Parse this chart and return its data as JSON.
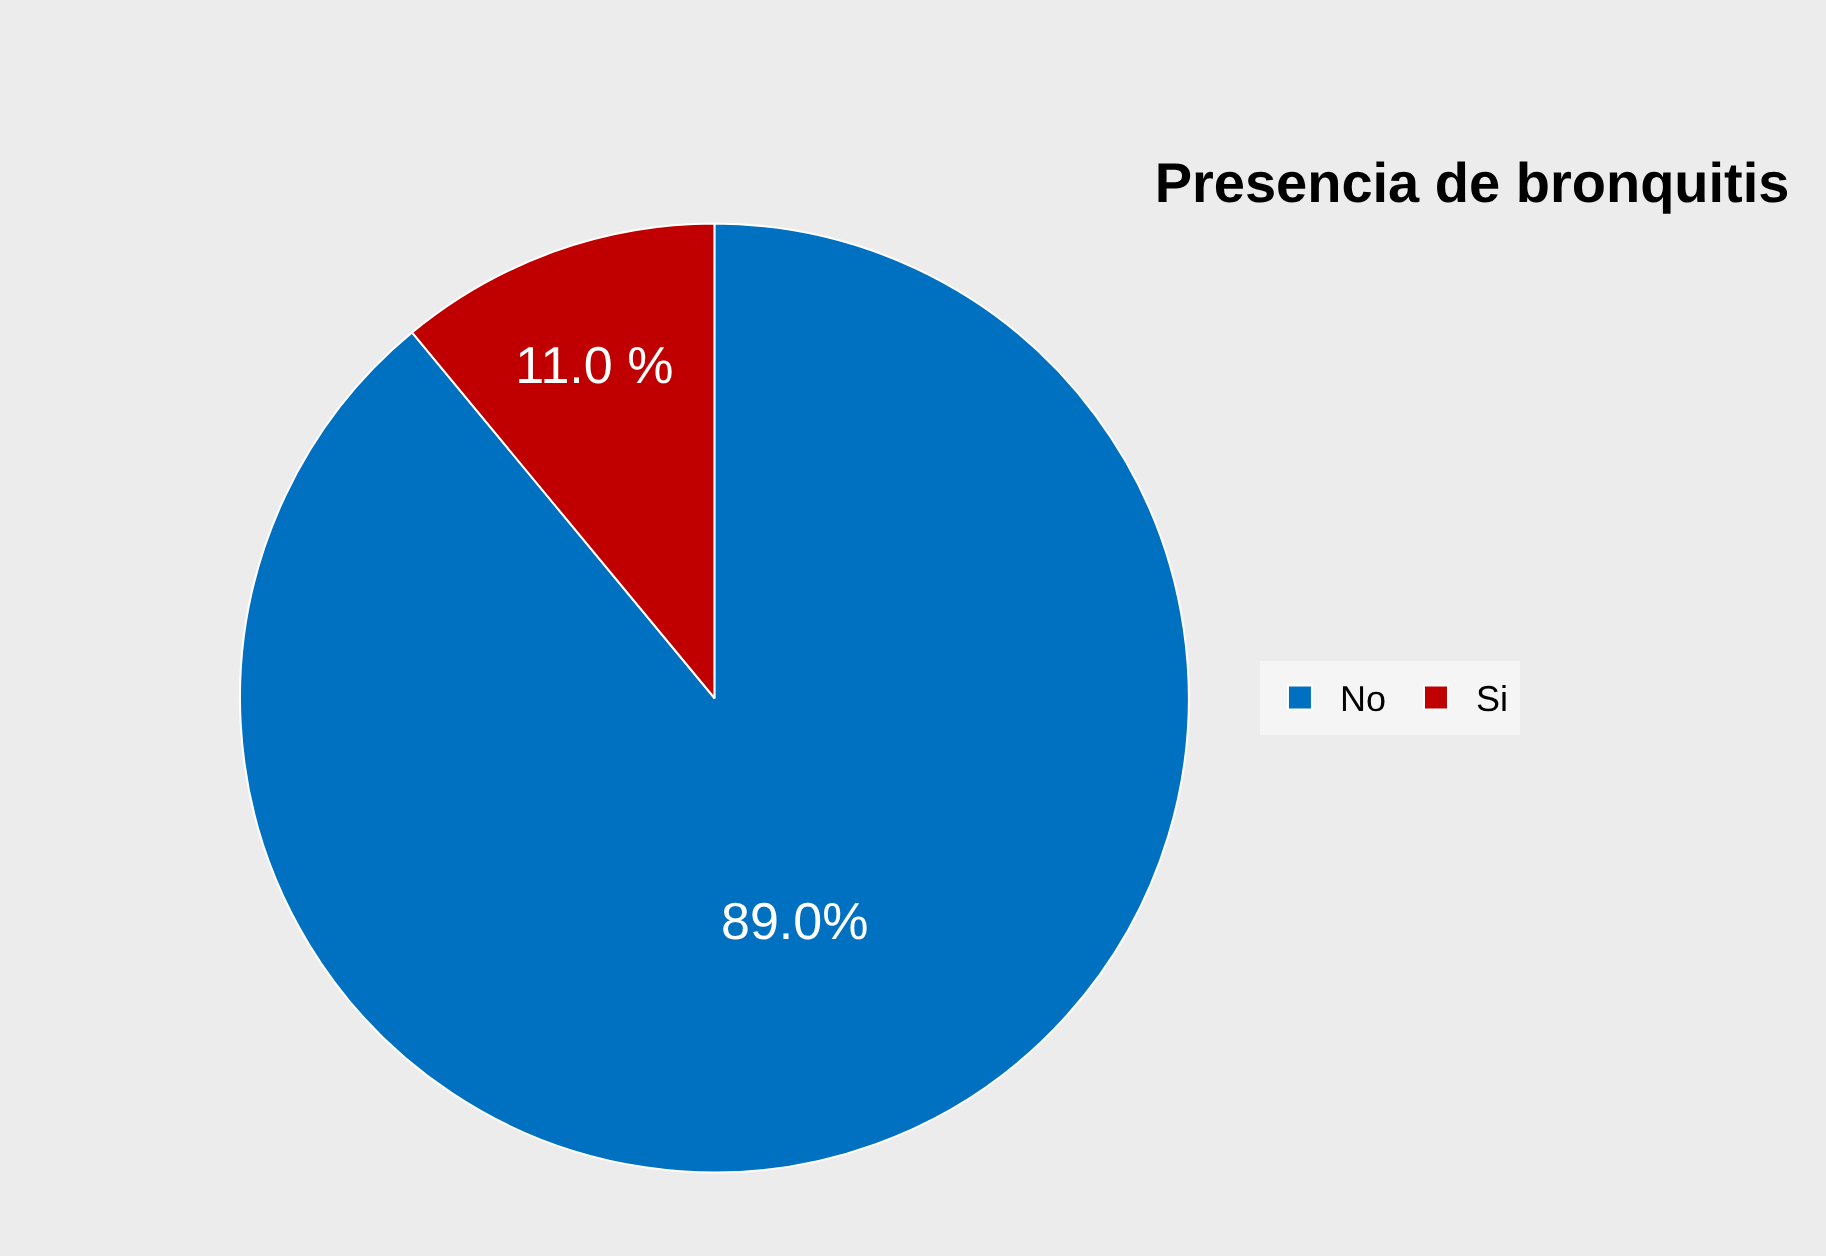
{
  "chart_data": {
    "type": "pie",
    "title": "Presencia de bronquitis",
    "categories": [
      "No",
      "Si"
    ],
    "values": [
      89.0,
      11.0
    ],
    "colors": [
      "#0070c0",
      "#c00000"
    ],
    "value_labels": [
      "89.0%",
      "11.0 %"
    ],
    "legend": "right"
  }
}
